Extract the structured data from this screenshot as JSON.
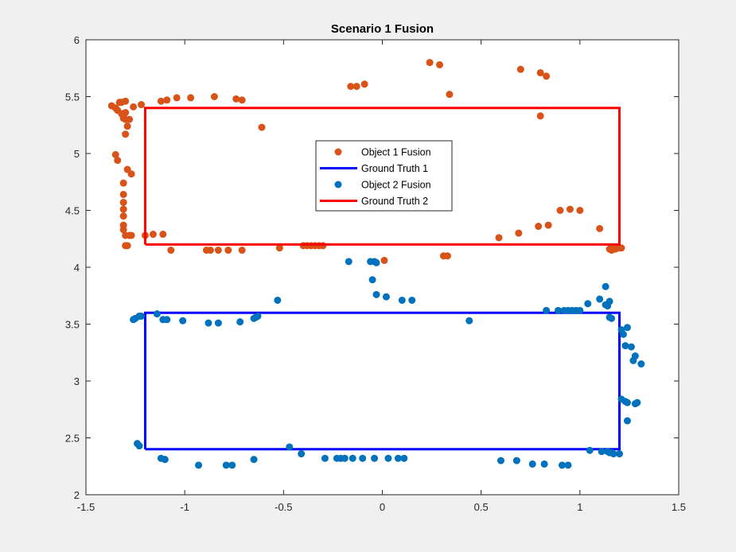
{
  "chart_data": {
    "type": "scatter",
    "title": "Scenario 1 Fusion",
    "xlabel": "",
    "ylabel": "",
    "xlim": [
      -1.5,
      1.5
    ],
    "ylim": [
      2,
      6
    ],
    "xticks": [
      -1.5,
      -1,
      -0.5,
      0,
      0.5,
      1,
      1.5
    ],
    "yticks": [
      2,
      2.5,
      3,
      3.5,
      4,
      4.5,
      5,
      5.5,
      6
    ],
    "grid": false,
    "legend_position": "center",
    "series": [
      {
        "name": "Object 1 Fusion",
        "kind": "scatter",
        "color": "#d95319",
        "points": [
          [
            -1.37,
            5.42
          ],
          [
            -1.35,
            5.4
          ],
          [
            -1.34,
            5.38
          ],
          [
            -1.33,
            5.45
          ],
          [
            -1.32,
            5.35
          ],
          [
            -1.31,
            5.31
          ],
          [
            -1.3,
            5.46
          ],
          [
            -1.3,
            5.36
          ],
          [
            -1.3,
            5.3
          ],
          [
            -1.29,
            5.24
          ],
          [
            -1.28,
            5.3
          ],
          [
            -1.26,
            5.41
          ],
          [
            -1.22,
            5.43
          ],
          [
            -1.32,
            5.45
          ],
          [
            -1.3,
            5.17
          ],
          [
            -1.35,
            4.99
          ],
          [
            -1.34,
            4.94
          ],
          [
            -1.29,
            4.86
          ],
          [
            -1.27,
            4.82
          ],
          [
            -1.31,
            4.74
          ],
          [
            -1.31,
            4.64
          ],
          [
            -1.31,
            4.57
          ],
          [
            -1.31,
            4.51
          ],
          [
            -1.31,
            4.45
          ],
          [
            -1.31,
            4.37
          ],
          [
            -1.31,
            4.33
          ],
          [
            -1.3,
            4.28
          ],
          [
            -1.28,
            4.28
          ],
          [
            -1.27,
            4.28
          ],
          [
            -1.3,
            4.19
          ],
          [
            -1.29,
            4.19
          ],
          [
            -1.2,
            4.28
          ],
          [
            -1.16,
            4.29
          ],
          [
            -1.11,
            4.29
          ],
          [
            -1.07,
            4.15
          ],
          [
            -1.12,
            5.46
          ],
          [
            -1.09,
            5.47
          ],
          [
            -1.04,
            5.49
          ],
          [
            -0.97,
            5.49
          ],
          [
            -0.85,
            5.5
          ],
          [
            -0.74,
            5.48
          ],
          [
            -0.71,
            5.47
          ],
          [
            -0.61,
            5.23
          ],
          [
            -0.89,
            4.15
          ],
          [
            -0.87,
            4.15
          ],
          [
            -0.83,
            4.15
          ],
          [
            -0.78,
            4.15
          ],
          [
            -0.71,
            4.15
          ],
          [
            -0.52,
            4.17
          ],
          [
            -0.4,
            4.19
          ],
          [
            -0.38,
            4.19
          ],
          [
            -0.36,
            4.19
          ],
          [
            -0.34,
            4.19
          ],
          [
            -0.32,
            4.19
          ],
          [
            -0.3,
            4.19
          ],
          [
            -0.16,
            5.59
          ],
          [
            -0.13,
            5.59
          ],
          [
            -0.09,
            5.61
          ],
          [
            0.24,
            5.8
          ],
          [
            0.29,
            5.78
          ],
          [
            0.34,
            5.52
          ],
          [
            0.7,
            5.74
          ],
          [
            0.8,
            5.71
          ],
          [
            0.83,
            5.68
          ],
          [
            0.8,
            5.33
          ],
          [
            0.01,
            4.06
          ],
          [
            0.31,
            4.1
          ],
          [
            0.33,
            4.1
          ],
          [
            0.59,
            4.26
          ],
          [
            0.69,
            4.3
          ],
          [
            0.79,
            4.36
          ],
          [
            0.84,
            4.37
          ],
          [
            0.9,
            4.5
          ],
          [
            0.95,
            4.51
          ],
          [
            1.0,
            4.5
          ],
          [
            1.1,
            4.34
          ],
          [
            1.15,
            4.16
          ],
          [
            1.16,
            4.15
          ],
          [
            1.17,
            4.17
          ],
          [
            1.18,
            4.16
          ],
          [
            1.2,
            4.17
          ],
          [
            1.21,
            4.17
          ]
        ]
      },
      {
        "name": "Ground Truth 1",
        "kind": "line",
        "color": "#0000ff",
        "points": [
          [
            -1.2,
            2.4
          ],
          [
            1.2,
            2.4
          ],
          [
            1.2,
            3.6
          ],
          [
            -1.2,
            3.6
          ],
          [
            -1.2,
            2.4
          ]
        ]
      },
      {
        "name": "Object 2 Fusion",
        "kind": "scatter",
        "color": "#0072bd",
        "points": [
          [
            -1.26,
            3.54
          ],
          [
            -1.25,
            3.55
          ],
          [
            -1.23,
            3.57
          ],
          [
            -1.22,
            3.57
          ],
          [
            -1.14,
            3.59
          ],
          [
            -1.11,
            3.54
          ],
          [
            -1.09,
            3.54
          ],
          [
            -1.01,
            3.53
          ],
          [
            -0.88,
            3.51
          ],
          [
            -0.83,
            3.51
          ],
          [
            -0.72,
            3.52
          ],
          [
            -0.65,
            3.55
          ],
          [
            -0.64,
            3.56
          ],
          [
            -0.63,
            3.57
          ],
          [
            -0.53,
            3.71
          ],
          [
            -0.17,
            4.05
          ],
          [
            -0.06,
            4.05
          ],
          [
            -0.04,
            4.05
          ],
          [
            -0.03,
            4.04
          ],
          [
            -0.05,
            3.89
          ],
          [
            -0.03,
            3.76
          ],
          [
            0.02,
            3.74
          ],
          [
            0.1,
            3.71
          ],
          [
            0.15,
            3.71
          ],
          [
            0.44,
            3.53
          ],
          [
            0.83,
            3.62
          ],
          [
            0.89,
            3.62
          ],
          [
            0.92,
            3.62
          ],
          [
            0.94,
            3.62
          ],
          [
            0.96,
            3.62
          ],
          [
            0.98,
            3.62
          ],
          [
            1.0,
            3.62
          ],
          [
            1.04,
            3.68
          ],
          [
            1.1,
            3.72
          ],
          [
            1.13,
            3.67
          ],
          [
            1.14,
            3.66
          ],
          [
            1.15,
            3.7
          ],
          [
            1.13,
            3.83
          ],
          [
            1.15,
            3.56
          ],
          [
            1.16,
            3.55
          ],
          [
            1.21,
            3.45
          ],
          [
            1.22,
            3.41
          ],
          [
            1.24,
            3.47
          ],
          [
            1.23,
            3.31
          ],
          [
            1.26,
            3.3
          ],
          [
            1.27,
            3.18
          ],
          [
            1.28,
            3.22
          ],
          [
            1.31,
            3.15
          ],
          [
            1.21,
            2.84
          ],
          [
            1.23,
            2.82
          ],
          [
            1.24,
            2.81
          ],
          [
            1.28,
            2.8
          ],
          [
            1.29,
            2.81
          ],
          [
            1.24,
            2.65
          ],
          [
            -1.24,
            2.45
          ],
          [
            -1.23,
            2.43
          ],
          [
            -1.12,
            2.32
          ],
          [
            -1.1,
            2.31
          ],
          [
            -0.93,
            2.26
          ],
          [
            -0.79,
            2.26
          ],
          [
            -0.76,
            2.26
          ],
          [
            -0.65,
            2.31
          ],
          [
            -0.47,
            2.42
          ],
          [
            -0.41,
            2.36
          ],
          [
            -0.29,
            2.32
          ],
          [
            -0.23,
            2.32
          ],
          [
            -0.21,
            2.32
          ],
          [
            -0.19,
            2.32
          ],
          [
            -0.15,
            2.32
          ],
          [
            -0.1,
            2.32
          ],
          [
            -0.04,
            2.32
          ],
          [
            0.03,
            2.32
          ],
          [
            0.08,
            2.32
          ],
          [
            0.11,
            2.32
          ],
          [
            0.6,
            2.3
          ],
          [
            0.68,
            2.3
          ],
          [
            0.76,
            2.27
          ],
          [
            0.82,
            2.27
          ],
          [
            0.91,
            2.26
          ],
          [
            0.94,
            2.26
          ],
          [
            1.05,
            2.39
          ],
          [
            1.11,
            2.38
          ],
          [
            1.14,
            2.38
          ],
          [
            1.15,
            2.37
          ],
          [
            1.16,
            2.37
          ],
          [
            1.17,
            2.36
          ],
          [
            1.2,
            2.36
          ]
        ]
      },
      {
        "name": "Ground Truth 2",
        "kind": "line",
        "color": "#ff0000",
        "points": [
          [
            -1.2,
            4.2
          ],
          [
            1.2,
            4.2
          ],
          [
            1.2,
            5.4
          ],
          [
            -1.2,
            5.4
          ],
          [
            -1.2,
            4.2
          ]
        ]
      }
    ]
  }
}
